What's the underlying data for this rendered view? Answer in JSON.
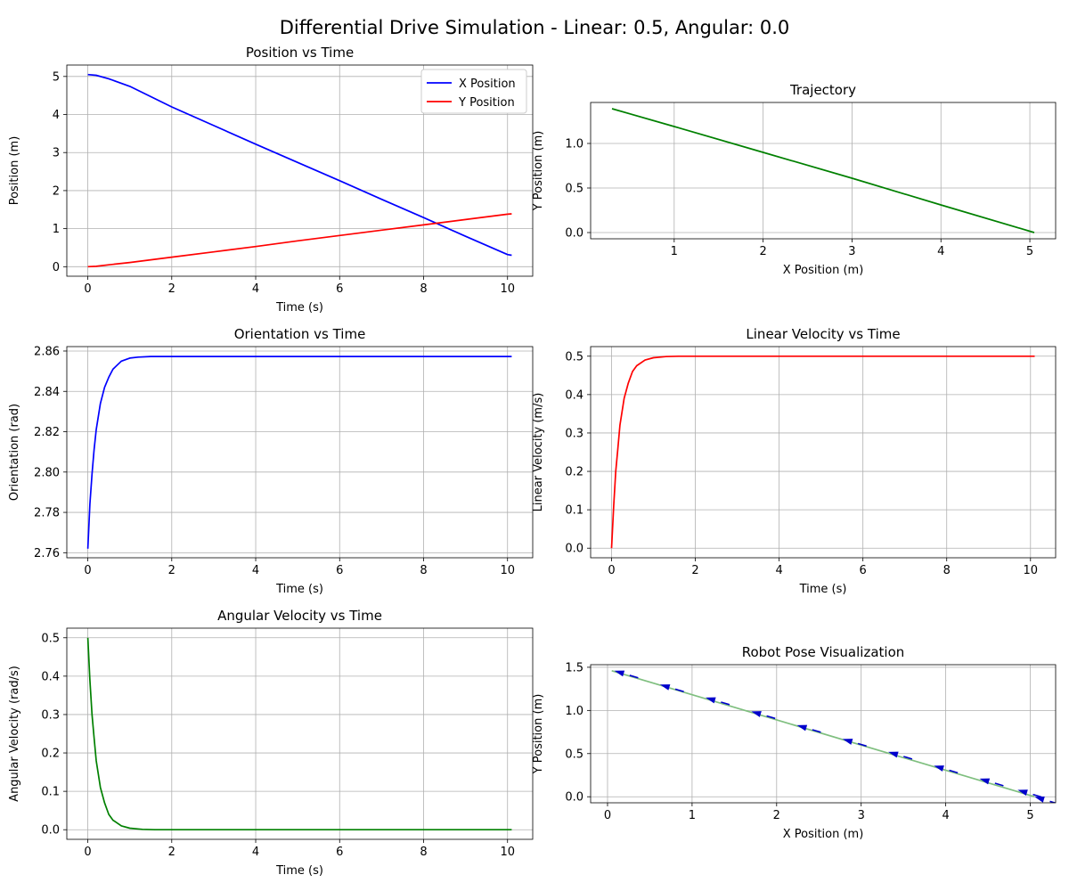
{
  "title": "Differential Drive Simulation - Linear: 0.5, Angular: 0.0",
  "chart_data": [
    {
      "id": "position",
      "type": "line",
      "title": "Position vs Time",
      "xlabel": "Time (s)",
      "ylabel": "Position (m)",
      "xlim": [
        -0.5,
        10.6
      ],
      "ylim": [
        -0.25,
        5.3
      ],
      "xticks": [
        0,
        2,
        4,
        6,
        8,
        10
      ],
      "yticks": [
        0,
        1,
        2,
        3,
        4,
        5
      ],
      "grid": true,
      "legend": "upper right",
      "series": [
        {
          "name": "X Position",
          "color": "#0000ff",
          "x": [
            0,
            0.2,
            0.5,
            1,
            2,
            3,
            4,
            5,
            6,
            7,
            8,
            9,
            10,
            10.1
          ],
          "y": [
            5.05,
            5.03,
            4.94,
            4.74,
            4.2,
            3.71,
            3.22,
            2.74,
            2.26,
            1.77,
            1.29,
            0.8,
            0.32,
            0.3
          ]
        },
        {
          "name": "Y Position",
          "color": "#ff0000",
          "x": [
            0,
            0.2,
            0.5,
            1,
            2,
            3,
            4,
            5,
            6,
            7,
            8,
            9,
            10,
            10.1
          ],
          "y": [
            0,
            0.01,
            0.05,
            0.11,
            0.25,
            0.39,
            0.53,
            0.68,
            0.82,
            0.96,
            1.1,
            1.24,
            1.38,
            1.39
          ]
        }
      ]
    },
    {
      "id": "trajectory",
      "type": "line",
      "title": "Trajectory",
      "xlabel": "X Position (m)",
      "ylabel": "Y Position (m)",
      "xlim": [
        0.06,
        5.29
      ],
      "ylim": [
        -0.07,
        1.46
      ],
      "xticks": [
        1,
        2,
        3,
        4,
        5
      ],
      "yticks": [
        0.0,
        0.5,
        1.0
      ],
      "ytick_labels": [
        "0.0",
        "0.5",
        "1.0"
      ],
      "grid": true,
      "series": [
        {
          "color": "#008000",
          "x": [
            0.3,
            1.0,
            2.0,
            3.0,
            4.0,
            5.05
          ],
          "y": [
            1.39,
            1.19,
            0.9,
            0.61,
            0.31,
            0.0
          ]
        }
      ]
    },
    {
      "id": "orientation",
      "type": "line",
      "title": "Orientation vs Time",
      "xlabel": "Time (s)",
      "ylabel": "Orientation (rad)",
      "xlim": [
        -0.5,
        10.6
      ],
      "ylim": [
        2.7575,
        2.8622
      ],
      "xticks": [
        0,
        2,
        4,
        6,
        8,
        10
      ],
      "yticks": [
        2.76,
        2.78,
        2.8,
        2.82,
        2.84,
        2.86
      ],
      "ytick_labels": [
        "2.76",
        "2.78",
        "2.80",
        "2.82",
        "2.84",
        "2.86"
      ],
      "grid": true,
      "series": [
        {
          "color": "#0000ff",
          "x": [
            0,
            0.05,
            0.1,
            0.15,
            0.2,
            0.3,
            0.4,
            0.5,
            0.6,
            0.7,
            0.8,
            1.0,
            1.2,
            1.5,
            2,
            4,
            6,
            8,
            10.1
          ],
          "y": [
            2.762,
            2.784,
            2.799,
            2.811,
            2.821,
            2.834,
            2.842,
            2.847,
            2.851,
            2.853,
            2.855,
            2.8565,
            2.857,
            2.8573,
            2.8573,
            2.8573,
            2.8573,
            2.8573,
            2.8573
          ]
        }
      ]
    },
    {
      "id": "linear_velocity",
      "type": "line",
      "title": "Linear Velocity vs Time",
      "xlabel": "Time (s)",
      "ylabel": "Linear Velocity (m/s)",
      "xlim": [
        -0.5,
        10.6
      ],
      "ylim": [
        -0.025,
        0.525
      ],
      "xticks": [
        0,
        2,
        4,
        6,
        8,
        10
      ],
      "yticks": [
        0.0,
        0.1,
        0.2,
        0.3,
        0.4,
        0.5
      ],
      "ytick_labels": [
        "0.0",
        "0.1",
        "0.2",
        "0.3",
        "0.4",
        "0.5"
      ],
      "grid": true,
      "series": [
        {
          "color": "#ff0000",
          "x": [
            0,
            0.05,
            0.1,
            0.15,
            0.2,
            0.3,
            0.4,
            0.5,
            0.6,
            0.8,
            1.0,
            1.3,
            1.6,
            2,
            4,
            6,
            8,
            10.1
          ],
          "y": [
            0,
            0.11,
            0.2,
            0.26,
            0.32,
            0.39,
            0.43,
            0.46,
            0.475,
            0.49,
            0.496,
            0.499,
            0.5,
            0.5,
            0.5,
            0.5,
            0.5,
            0.5
          ]
        }
      ]
    },
    {
      "id": "angular_velocity",
      "type": "line",
      "title": "Angular Velocity vs Time",
      "xlabel": "Time (s)",
      "ylabel": "Angular Velocity (rad/s)",
      "xlim": [
        -0.5,
        10.6
      ],
      "ylim": [
        -0.025,
        0.525
      ],
      "xticks": [
        0,
        2,
        4,
        6,
        8,
        10
      ],
      "yticks": [
        0.0,
        0.1,
        0.2,
        0.3,
        0.4,
        0.5
      ],
      "ytick_labels": [
        "0.0",
        "0.1",
        "0.2",
        "0.3",
        "0.4",
        "0.5"
      ],
      "grid": true,
      "series": [
        {
          "color": "#008000",
          "x": [
            0,
            0.05,
            0.1,
            0.15,
            0.2,
            0.3,
            0.4,
            0.5,
            0.6,
            0.8,
            1.0,
            1.3,
            1.6,
            2,
            4,
            6,
            8,
            10.1
          ],
          "y": [
            0.5,
            0.39,
            0.3,
            0.24,
            0.18,
            0.11,
            0.07,
            0.04,
            0.025,
            0.01,
            0.004,
            0.001,
            0,
            0,
            0,
            0,
            0,
            0
          ]
        }
      ]
    },
    {
      "id": "pose",
      "type": "line",
      "title": "Robot Pose Visualization",
      "xlabel": "X Position (m)",
      "ylabel": "Y Position (m)",
      "xlim": [
        -0.2,
        5.3
      ],
      "ylim": [
        -0.07,
        1.53
      ],
      "xticks": [
        0,
        1,
        2,
        3,
        4,
        5
      ],
      "yticks": [
        0.0,
        0.5,
        1.0,
        1.5
      ],
      "ytick_labels": [
        "0.0",
        "0.5",
        "1.0",
        "1.5"
      ],
      "grid": true,
      "series": [
        {
          "color": "#7fbf7f",
          "x": [
            0.05,
            5.05
          ],
          "y": [
            1.46,
            0.0
          ]
        }
      ],
      "arrows": {
        "color": "#0000cc",
        "points": [
          {
            "x": 5.05,
            "y": 0.0
          },
          {
            "x": 4.85,
            "y": 0.08
          },
          {
            "x": 4.4,
            "y": 0.21
          },
          {
            "x": 3.86,
            "y": 0.36
          },
          {
            "x": 3.32,
            "y": 0.52
          },
          {
            "x": 2.78,
            "y": 0.67
          },
          {
            "x": 2.24,
            "y": 0.83
          },
          {
            "x": 1.7,
            "y": 0.99
          },
          {
            "x": 1.16,
            "y": 1.15
          },
          {
            "x": 0.62,
            "y": 1.3
          },
          {
            "x": 0.08,
            "y": 1.46
          }
        ],
        "heading_rad": 2.857
      }
    }
  ]
}
